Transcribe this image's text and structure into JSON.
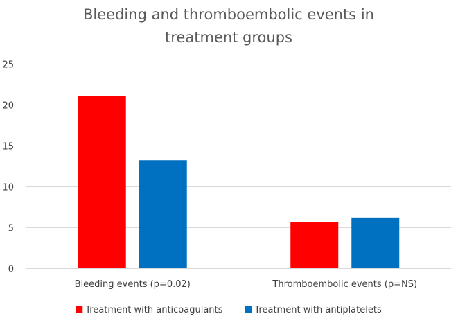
{
  "chart_data": {
    "type": "bar",
    "title_lines": [
      "Bleeding and thromboembolic events in",
      "treatment groups"
    ],
    "categories": [
      "Bleeding events (p=0.02)",
      "Thromboembolic events (p=NS)"
    ],
    "series": [
      {
        "name": "Treatment with anticoagulants",
        "color": "#ff0000",
        "values": [
          21.1,
          5.6
        ]
      },
      {
        "name": "Treatment with antiplatelets",
        "color": "#0070c0",
        "values": [
          13.2,
          6.2
        ]
      }
    ],
    "yticks": [
      0,
      5,
      10,
      15,
      20,
      25
    ],
    "ylim": [
      0,
      25
    ],
    "grid": true,
    "legend": "bottom"
  }
}
